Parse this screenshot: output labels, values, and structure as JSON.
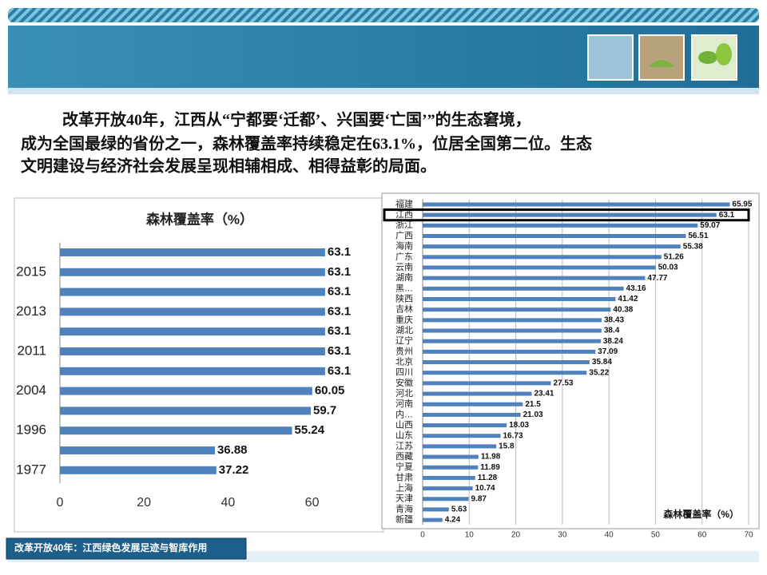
{
  "paragraph": [
    "改革开放40年，江西从“宁都要‘迁都’、兴国要‘亡国’”的生态窘境，",
    "成为全国最绿的省份之一，森林覆盖率持续稳定在63.1%，位居全国第二位。生态",
    "文明建设与经济社会发展呈现相辅相成、相得益彰的局面。"
  ],
  "footer": "改革开放40年：江西绿色发展足迹与智库作用",
  "chart_data": [
    {
      "type": "hbar",
      "title": "森林覆盖率（%）",
      "categories": [
        null,
        "2015",
        null,
        "2013",
        null,
        "2011",
        null,
        "2004",
        null,
        "1996",
        null,
        "1977"
      ],
      "values": [
        63.1,
        63.1,
        63.1,
        63.1,
        63.1,
        63.1,
        63.1,
        60.05,
        59.7,
        55.24,
        36.88,
        37.22
      ],
      "color": "#4f81bd",
      "xlim": [
        0,
        77
      ],
      "xticks": [
        0,
        20,
        40,
        60
      ],
      "grid": false
    },
    {
      "type": "hbar",
      "xlabel": "森林覆盖率（%）",
      "categories": [
        "福建",
        "江西",
        "浙江",
        "广西",
        "海南",
        "广东",
        "云南",
        "湖南",
        "黑…",
        "陕西",
        "吉林",
        "重庆",
        "湖北",
        "辽宁",
        "贵州",
        "北京",
        "四川",
        "安徽",
        "河北",
        "河南",
        "内…",
        "山西",
        "山东",
        "江苏",
        "西藏",
        "宁夏",
        "甘肃",
        "上海",
        "天津",
        "青海",
        "新疆"
      ],
      "values": [
        65.95,
        63.1,
        59.07,
        56.51,
        55.38,
        51.26,
        50.03,
        47.77,
        43.16,
        41.42,
        40.38,
        38.43,
        38.4,
        38.24,
        37.09,
        35.84,
        35.22,
        27.53,
        23.41,
        21.5,
        21.03,
        18.03,
        16.73,
        15.8,
        11.98,
        11.89,
        11.28,
        10.74,
        9.87,
        5.63,
        4.24
      ],
      "color": "#4f81bd",
      "xlim": [
        0,
        70
      ],
      "xticks": [
        0,
        10,
        20,
        30,
        40,
        50,
        60,
        70
      ],
      "grid": true,
      "highlight_index": 1
    }
  ]
}
